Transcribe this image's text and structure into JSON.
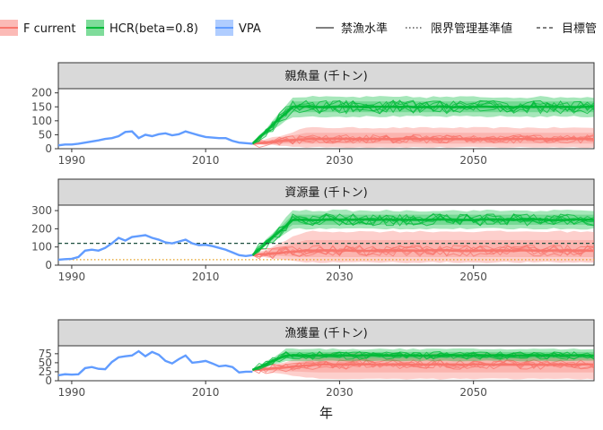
{
  "legend": {
    "fill_items": [
      {
        "label": "F current",
        "color": "#f8766d"
      },
      {
        "label": "HCR(beta=0.8)",
        "color": "#00ba38"
      },
      {
        "label": "VPA",
        "color": "#619cff"
      }
    ],
    "line_items": [
      {
        "label": "禁漁水準",
        "dash": "solid"
      },
      {
        "label": "限界管理基準値",
        "dash": "dotted"
      },
      {
        "label": "目標管",
        "dash": "dashed"
      }
    ]
  },
  "chart_data": {
    "type": "line",
    "xlabel": "年",
    "x_ticks": [
      1990,
      2010,
      2030,
      2050
    ],
    "xlim": [
      1988,
      2068
    ],
    "panels": [
      {
        "title": "親魚量 (千トン)",
        "ylim": [
          0,
          215
        ],
        "y_ticks": [
          0,
          50,
          100,
          150,
          200
        ],
        "vpa_years": [
          1988,
          1989,
          1990,
          1991,
          1992,
          1993,
          1994,
          1995,
          1996,
          1997,
          1998,
          1999,
          2000,
          2001,
          2002,
          2003,
          2004,
          2005,
          2006,
          2007,
          2008,
          2009,
          2010,
          2011,
          2012,
          2013,
          2014,
          2015,
          2016,
          2017
        ],
        "vpa_values": [
          12,
          15,
          15,
          18,
          22,
          26,
          30,
          35,
          38,
          45,
          60,
          62,
          38,
          50,
          45,
          52,
          55,
          48,
          52,
          62,
          55,
          48,
          42,
          40,
          38,
          38,
          28,
          22,
          20,
          18
        ],
        "hcr": {
          "start_year": 2017,
          "start_value": 18,
          "plateau": 150,
          "band_low": 115,
          "band_high": 185,
          "noise": 22,
          "rise_years": 6
        },
        "fcurrent": {
          "start_year": 2017,
          "start_value": 18,
          "plateau": 35,
          "band_low": 5,
          "band_high": 75,
          "noise": 14,
          "rise_years": 8
        },
        "ref_lines": []
      },
      {
        "title": "資源量 (千トン)",
        "ylim": [
          0,
          330
        ],
        "y_ticks": [
          0,
          100,
          200,
          300
        ],
        "vpa_years": [
          1988,
          1989,
          1990,
          1991,
          1992,
          1993,
          1994,
          1995,
          1996,
          1997,
          1998,
          1999,
          2000,
          2001,
          2002,
          2003,
          2004,
          2005,
          2006,
          2007,
          2008,
          2009,
          2010,
          2011,
          2012,
          2013,
          2014,
          2015,
          2016,
          2017
        ],
        "vpa_values": [
          30,
          33,
          35,
          45,
          80,
          85,
          80,
          95,
          120,
          150,
          135,
          155,
          160,
          165,
          150,
          140,
          125,
          120,
          130,
          140,
          120,
          110,
          112,
          105,
          95,
          85,
          70,
          55,
          50,
          55
        ],
        "hcr": {
          "start_year": 2017,
          "start_value": 55,
          "plateau": 250,
          "band_low": 200,
          "band_high": 300,
          "noise": 30,
          "rise_years": 6
        },
        "fcurrent": {
          "start_year": 2017,
          "start_value": 55,
          "plateau": 80,
          "band_low": 15,
          "band_high": 185,
          "noise": 28,
          "rise_years": 8
        },
        "ref_lines": [
          {
            "value": 120,
            "color": "#1b4d3e",
            "dash": "dashed"
          },
          {
            "value": 30,
            "color": "#e6a020",
            "dash": "dotted"
          }
        ]
      },
      {
        "title": "漁獲量 (千トン)",
        "ylim": [
          0,
          97
        ],
        "y_ticks": [
          0,
          25,
          50,
          75
        ],
        "vpa_years": [
          1988,
          1989,
          1990,
          1991,
          1992,
          1993,
          1994,
          1995,
          1996,
          1997,
          1998,
          1999,
          2000,
          2001,
          2002,
          2003,
          2004,
          2005,
          2006,
          2007,
          2008,
          2009,
          2010,
          2011,
          2012,
          2013,
          2014,
          2015,
          2016,
          2017
        ],
        "vpa_values": [
          15,
          18,
          17,
          18,
          35,
          38,
          33,
          32,
          52,
          65,
          68,
          70,
          82,
          68,
          80,
          72,
          55,
          48,
          60,
          70,
          50,
          52,
          55,
          48,
          40,
          42,
          38,
          23,
          25,
          25
        ],
        "hcr": {
          "start_year": 2017,
          "start_value": 30,
          "plateau": 70,
          "band_low": 55,
          "band_high": 88,
          "noise": 10,
          "rise_years": 5
        },
        "fcurrent": {
          "start_year": 2017,
          "start_value": 30,
          "plateau": 45,
          "band_low": 5,
          "band_high": 75,
          "noise": 12,
          "rise_years": 10
        },
        "ref_lines": []
      }
    ]
  }
}
